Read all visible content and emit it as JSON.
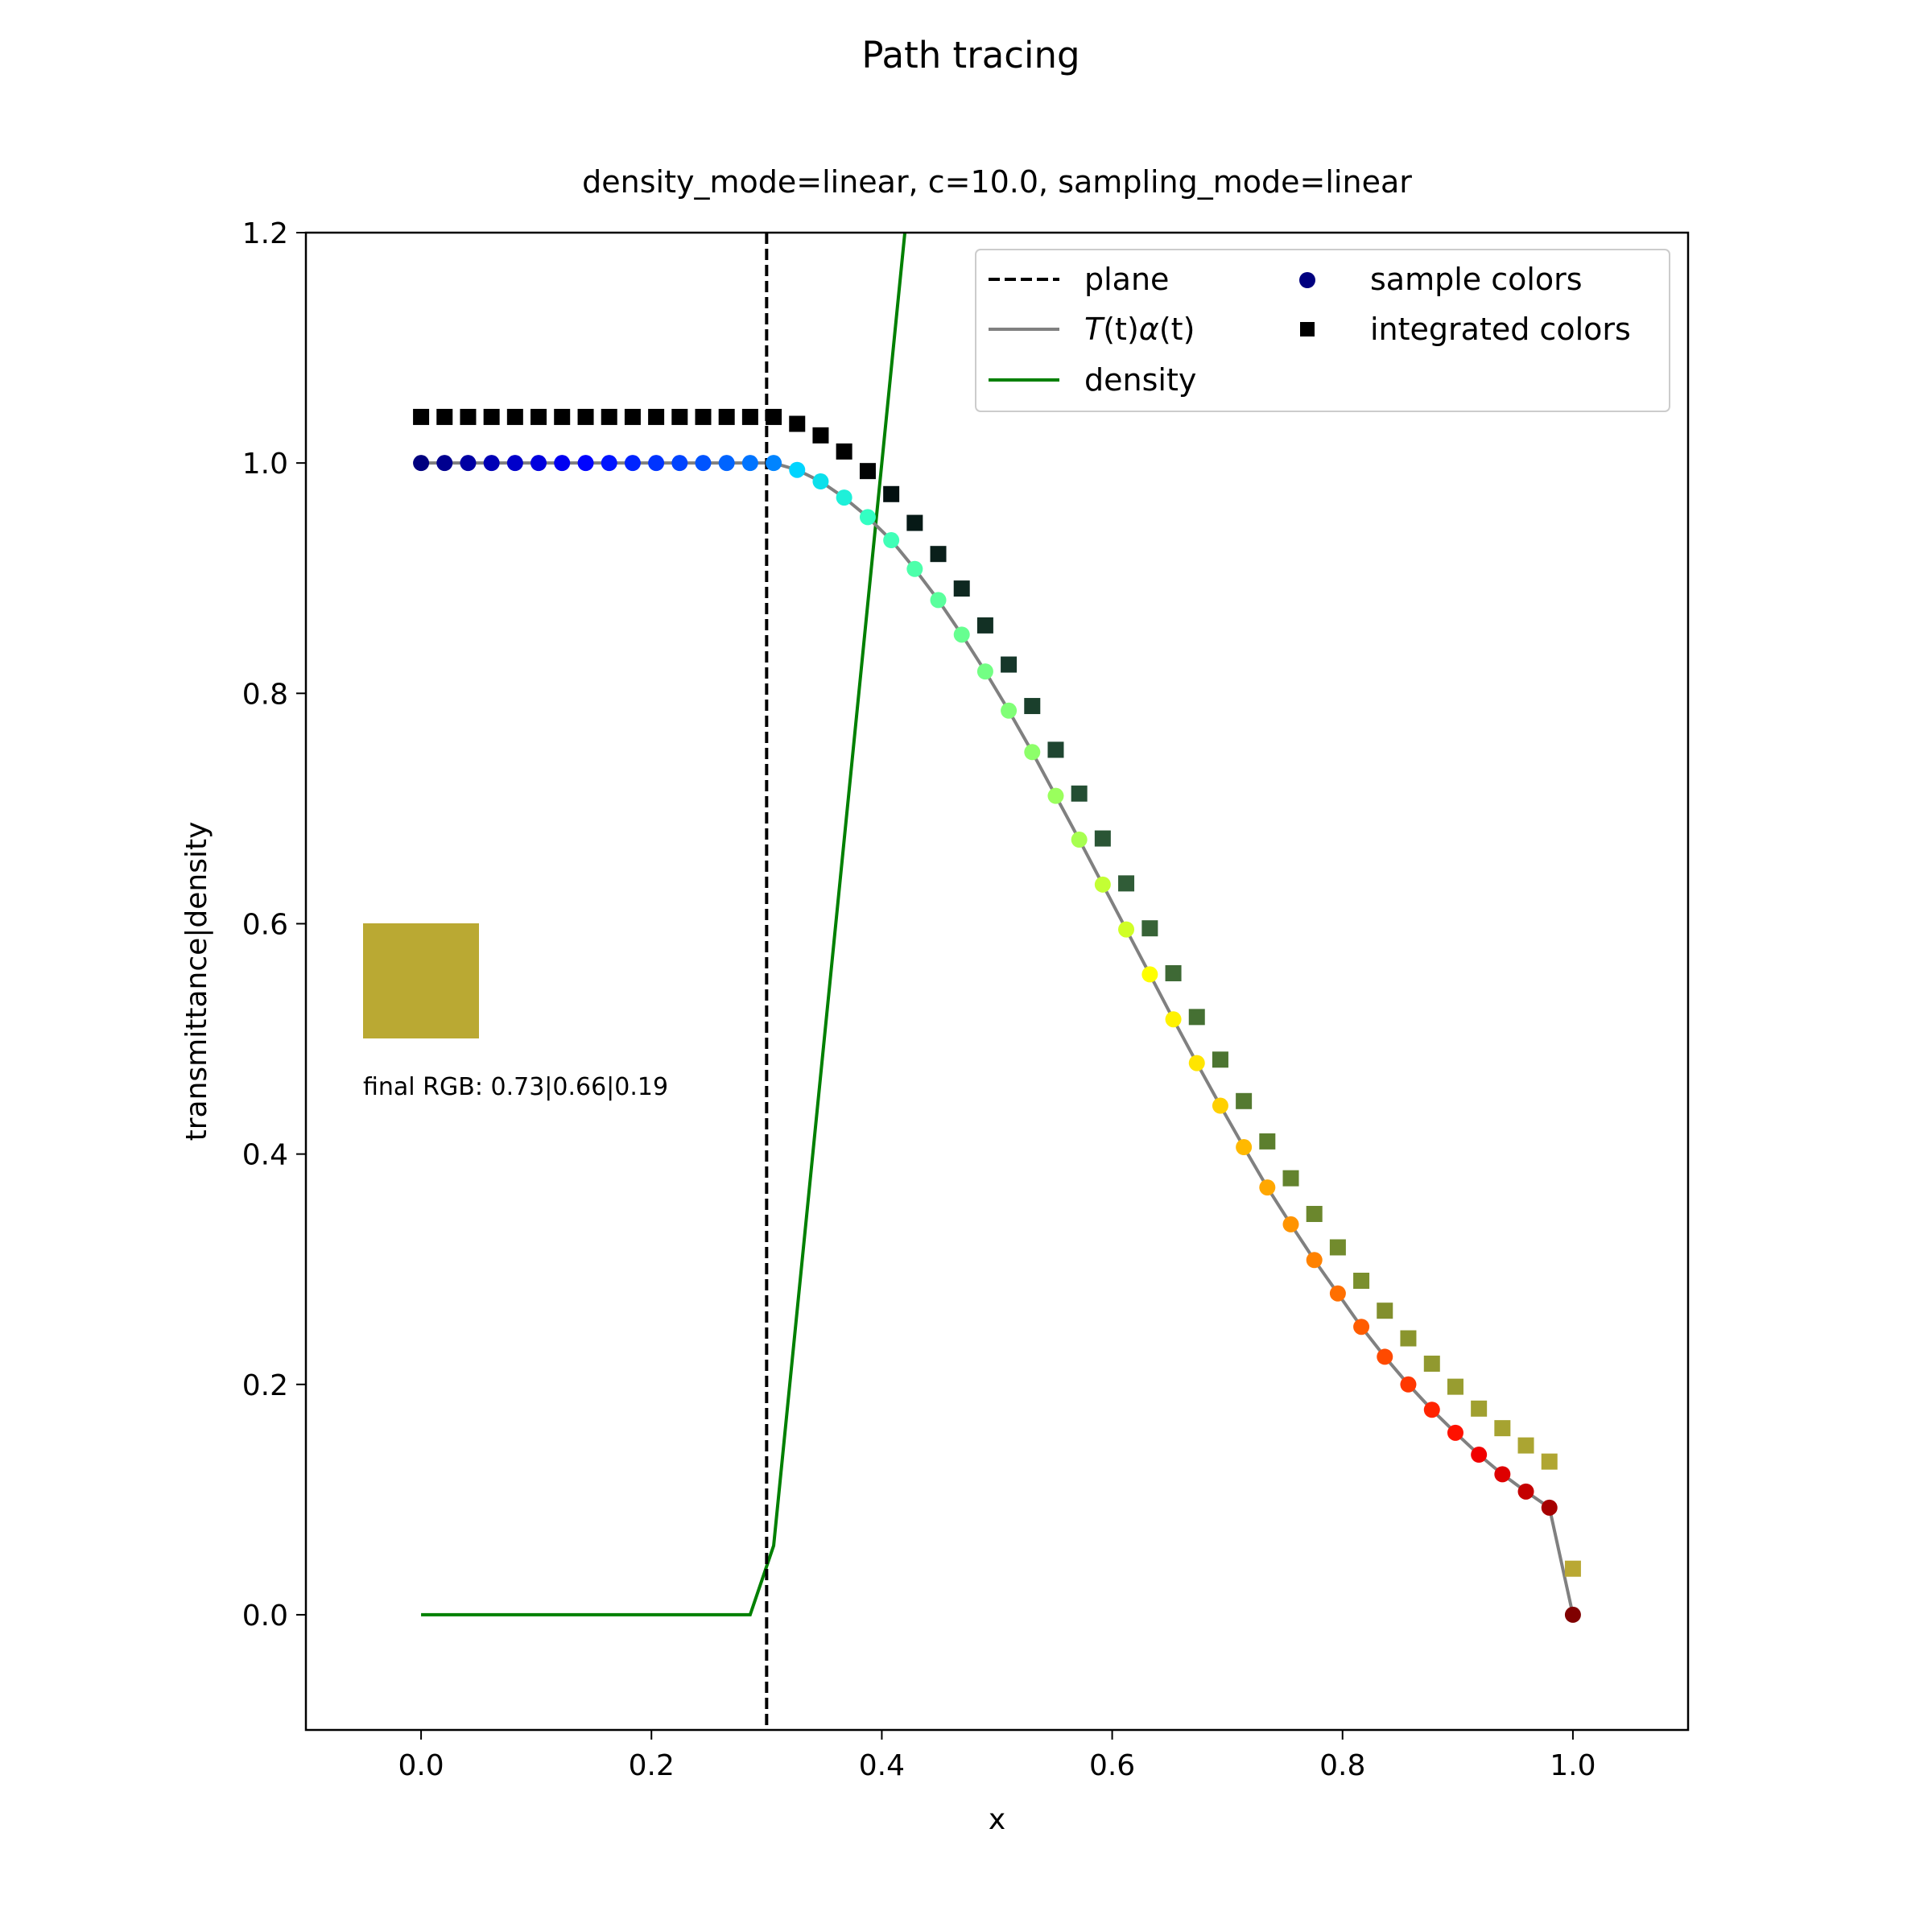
{
  "chart_data": {
    "type": "line",
    "title": "Path tracing",
    "subtitle": "density_mode=linear, c=10.0, sampling_mode=linear",
    "xlabel": "x",
    "ylabel": "transmittance|density",
    "xlim": [
      -0.1,
      1.1
    ],
    "ylim": [
      -0.1,
      1.2
    ],
    "xticks": [
      "0.0",
      "0.2",
      "0.4",
      "0.6",
      "0.8",
      "1.0"
    ],
    "yticks": [
      "0.0",
      "0.2",
      "0.4",
      "0.6",
      "0.8",
      "1.0",
      "1.2"
    ],
    "grid": false,
    "legend_position": "top-right",
    "legend": {
      "plane": "plane",
      "ta_prefix": "T",
      "ta_t1": "(t)",
      "ta_alpha": "α",
      "ta_t2": "(t)",
      "density": "density",
      "sample": "sample colors",
      "integrated": "integrated colors"
    },
    "plane_x": 0.3,
    "density_line": {
      "x": [
        0.0,
        0.2857,
        0.3061,
        0.42
      ],
      "y": [
        0.0,
        0.0,
        0.06,
        1.2
      ]
    },
    "transmittance_alpha": {
      "x": [
        0.0,
        0.0204,
        0.0408,
        0.0612,
        0.0816,
        0.102,
        0.1224,
        0.1429,
        0.1633,
        0.1837,
        0.2041,
        0.2245,
        0.2449,
        0.2653,
        0.2857,
        0.3061,
        0.3265,
        0.3469,
        0.3673,
        0.3878,
        0.4082,
        0.4286,
        0.449,
        0.4694,
        0.4898,
        0.5102,
        0.5306,
        0.551,
        0.5714,
        0.5918,
        0.6122,
        0.6327,
        0.6531,
        0.6735,
        0.6939,
        0.7143,
        0.7347,
        0.7551,
        0.7755,
        0.7959,
        0.8163,
        0.8367,
        0.8571,
        0.8776,
        0.898,
        0.9184,
        0.9388,
        0.9592,
        0.9796,
        1.0
      ],
      "y": [
        1.0,
        1.0,
        1.0,
        1.0,
        1.0,
        1.0,
        1.0,
        1.0,
        1.0,
        1.0,
        1.0,
        1.0,
        1.0,
        1.0,
        1.0,
        1.0,
        0.994,
        0.984,
        0.97,
        0.953,
        0.933,
        0.908,
        0.881,
        0.851,
        0.819,
        0.785,
        0.749,
        0.711,
        0.673,
        0.634,
        0.595,
        0.556,
        0.517,
        0.479,
        0.442,
        0.406,
        0.371,
        0.339,
        0.308,
        0.279,
        0.25,
        0.224,
        0.2,
        0.178,
        0.158,
        0.139,
        0.122,
        0.107,
        0.093,
        0.0
      ]
    },
    "sample_colors": [
      "#00007f",
      "#00008f",
      "#0000a3",
      "#0000b6",
      "#0000ca",
      "#0000de",
      "#0000f1",
      "#0004ff",
      "#0014ff",
      "#0024ff",
      "#0034ff",
      "#0044ff",
      "#0054ff",
      "#0064ff",
      "#0074ff",
      "#0084ff",
      "#00d4ff",
      "#0ce0eb",
      "#1ef0d9",
      "#33ffc3",
      "#40ffb7",
      "#4dffaa",
      "#5aff9d",
      "#66ff90",
      "#73ff84",
      "#80ff77",
      "#8dff6a",
      "#9aff5d",
      "#a7ff50",
      "#c3ff34",
      "#d0ff27",
      "#ffff00",
      "#fff200",
      "#ffe500",
      "#ffd000",
      "#ffb900",
      "#ffa700",
      "#ff9400",
      "#ff8200",
      "#ff6f00",
      "#ff5c00",
      "#ff4a00",
      "#ff3700",
      "#ff2400",
      "#ff1100",
      "#f10000",
      "#de0000",
      "#c50000",
      "#a60000",
      "#800000"
    ],
    "integrated_points": {
      "x": [
        0.0,
        0.0204,
        0.0408,
        0.0612,
        0.0816,
        0.102,
        0.1224,
        0.1429,
        0.1633,
        0.1837,
        0.2041,
        0.2245,
        0.2449,
        0.2653,
        0.2857,
        0.3061,
        0.3265,
        0.3469,
        0.3673,
        0.3878,
        0.4082,
        0.4286,
        0.449,
        0.4694,
        0.4898,
        0.5102,
        0.5306,
        0.551,
        0.5714,
        0.5918,
        0.6122,
        0.6327,
        0.6531,
        0.6735,
        0.6939,
        0.7143,
        0.7347,
        0.7551,
        0.7755,
        0.7959,
        0.8163,
        0.8367,
        0.8571,
        0.8776,
        0.898,
        0.9184,
        0.9388,
        0.9592,
        0.9796,
        1.0
      ],
      "y": [
        1.04,
        1.04,
        1.04,
        1.04,
        1.04,
        1.04,
        1.04,
        1.04,
        1.04,
        1.04,
        1.04,
        1.04,
        1.04,
        1.04,
        1.04,
        1.04,
        1.034,
        1.024,
        1.01,
        0.993,
        0.973,
        0.948,
        0.921,
        0.891,
        0.859,
        0.825,
        0.789,
        0.751,
        0.713,
        0.674,
        0.635,
        0.596,
        0.557,
        0.519,
        0.482,
        0.446,
        0.411,
        0.379,
        0.348,
        0.319,
        0.29,
        0.264,
        0.24,
        0.218,
        0.198,
        0.179,
        0.162,
        0.147,
        0.133,
        0.04
      ]
    },
    "integrated_colors": [
      "#000000",
      "#000000",
      "#000000",
      "#000000",
      "#000000",
      "#000000",
      "#000000",
      "#000000",
      "#000000",
      "#000000",
      "#000000",
      "#000000",
      "#000000",
      "#000000",
      "#000000",
      "#000000",
      "#000000",
      "#000000",
      "#010101",
      "#020303",
      "#031010",
      "#061916",
      "#0a1f1a",
      "#0e2820",
      "#123024",
      "#16372a",
      "#1a3f2c",
      "#1f4631",
      "#244e33",
      "#2a5535",
      "#305c37",
      "#376336",
      "#3e6935",
      "#457033",
      "#4c7531",
      "#547a30",
      "#5c7f2e",
      "#63832e",
      "#6b872d",
      "#728b2d",
      "#7a8f2d",
      "#828f2d",
      "#8a952e",
      "#91992f",
      "#989d30",
      "#a0a030",
      "#a6a331",
      "#aba532",
      "#b0a632",
      "#b9a833"
    ],
    "final_swatch_color": "#baa933",
    "final_rgb_label": "final RGB: 0.73|0.66|0.19"
  }
}
